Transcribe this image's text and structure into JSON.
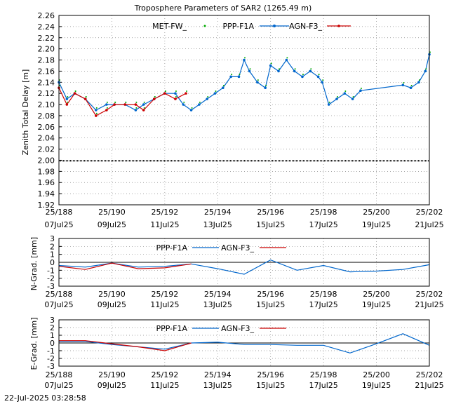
{
  "footer": {
    "timestamp": "22-Jul-2025 03:28:58"
  },
  "x_ticks": [
    {
      "top": "25/188",
      "bottom": "07Jul25",
      "day": 188
    },
    {
      "top": "25/190",
      "bottom": "09Jul25",
      "day": 190
    },
    {
      "top": "25/192",
      "bottom": "11Jul25",
      "day": 192
    },
    {
      "top": "25/194",
      "bottom": "13Jul25",
      "day": 194
    },
    {
      "top": "25/196",
      "bottom": "15Jul25",
      "day": 196
    },
    {
      "top": "25/198",
      "bottom": "17Jul25",
      "day": 198
    },
    {
      "top": "25/200",
      "bottom": "19Jul25",
      "day": 200
    },
    {
      "top": "25/202",
      "bottom": "21Jul25",
      "day": 202
    }
  ],
  "colors": {
    "met": "#00aa00",
    "ppp": "#0066cc",
    "agn": "#cc0000",
    "fw": "#000000"
  },
  "chart_data": [
    {
      "type": "scatter",
      "title": "Troposphere Parameters of SAR2 (1265.49 m)",
      "ylabel": "Zenith Total Delay [m]",
      "xlim": [
        188,
        202
      ],
      "ylim": [
        1.92,
        2.26
      ],
      "yticks": [
        "1.92",
        "1.94",
        "1.96",
        "1.98",
        "2.00",
        "2.02",
        "2.04",
        "2.06",
        "2.08",
        "2.10",
        "2.12",
        "2.14",
        "2.16",
        "2.18",
        "2.20",
        "2.22",
        "2.24",
        "2.26"
      ],
      "legend": [
        "MET-FW_",
        "PPP-F1A",
        "AGN-F3_"
      ],
      "series": [
        {
          "name": "PPP-F1A",
          "x": [
            188.0,
            188.3,
            188.6,
            189.0,
            189.4,
            189.8,
            190.1,
            190.5,
            190.9,
            191.2,
            191.6,
            192.0,
            192.4,
            192.7,
            193.0,
            193.3,
            193.6,
            193.9,
            194.2,
            194.5,
            194.8,
            195.0,
            195.2,
            195.5,
            195.8,
            196.0,
            196.3,
            196.6,
            196.9,
            197.2,
            197.5,
            197.8,
            197.95,
            198.2,
            198.5,
            198.8,
            199.1,
            199.4,
            201.0,
            201.3,
            201.6,
            201.85,
            202.0
          ],
          "y": [
            2.14,
            2.11,
            2.12,
            2.11,
            2.09,
            2.1,
            2.1,
            2.1,
            2.09,
            2.1,
            2.11,
            2.12,
            2.12,
            2.1,
            2.09,
            2.1,
            2.11,
            2.12,
            2.13,
            2.15,
            2.15,
            2.18,
            2.16,
            2.14,
            2.13,
            2.17,
            2.16,
            2.18,
            2.16,
            2.15,
            2.16,
            2.15,
            2.14,
            2.1,
            2.11,
            2.12,
            2.11,
            2.125,
            2.135,
            2.13,
            2.14,
            2.16,
            2.19
          ]
        },
        {
          "name": "AGN-F3_",
          "x": [
            188.0,
            188.3,
            188.6,
            189.0,
            189.4,
            189.8,
            190.1,
            190.5,
            190.9,
            191.2,
            191.6,
            192.0,
            192.4,
            192.8
          ],
          "y": [
            2.13,
            2.1,
            2.12,
            2.11,
            2.08,
            2.09,
            2.1,
            2.1,
            2.1,
            2.09,
            2.11,
            2.12,
            2.11,
            2.12
          ]
        },
        {
          "name": "MET-FW_",
          "x": [
            188,
            202
          ],
          "y": [
            1.999,
            1.999
          ]
        }
      ]
    },
    {
      "type": "line",
      "ylabel": "N-Grad. [mm]",
      "xlim": [
        188,
        202
      ],
      "ylim": [
        -3,
        3
      ],
      "yticks": [
        "-3",
        "-2",
        "-1",
        "0",
        "1",
        "2",
        "3"
      ],
      "legend": [
        "PPP-F1A",
        "AGN-F3_"
      ],
      "series": [
        {
          "name": "PPP-F1A",
          "x": [
            188,
            189,
            190,
            191,
            192,
            193,
            194,
            195,
            196,
            197,
            198,
            199,
            200,
            201,
            202
          ],
          "y": [
            -0.4,
            -0.6,
            -0.1,
            -0.6,
            -0.5,
            -0.2,
            -0.8,
            -1.5,
            0.3,
            -1.0,
            -0.4,
            -1.2,
            -1.1,
            -0.9,
            -0.3
          ]
        },
        {
          "name": "AGN-F3_",
          "x": [
            188,
            189,
            190,
            191,
            192,
            193
          ],
          "y": [
            -0.5,
            -0.9,
            -0.1,
            -0.8,
            -0.7,
            -0.2
          ]
        }
      ]
    },
    {
      "type": "line",
      "ylabel": "E-Grad. [mm]",
      "xlim": [
        188,
        202
      ],
      "ylim": [
        -3,
        3
      ],
      "yticks": [
        "-3",
        "-2",
        "-1",
        "0",
        "1",
        "2",
        "3"
      ],
      "legend": [
        "PPP-F1A",
        "AGN-F3_"
      ],
      "series": [
        {
          "name": "PPP-F1A",
          "x": [
            188,
            189,
            190,
            191,
            192,
            193,
            194,
            195,
            196,
            197,
            198,
            199,
            200,
            201,
            202
          ],
          "y": [
            0.2,
            0.2,
            -0.2,
            -0.5,
            -0.8,
            0.0,
            0.1,
            -0.2,
            -0.2,
            -0.3,
            -0.3,
            -1.3,
            -0.1,
            1.2,
            -0.3
          ]
        },
        {
          "name": "AGN-F3_",
          "x": [
            188,
            189,
            190,
            191,
            192,
            193
          ],
          "y": [
            0.3,
            0.3,
            -0.1,
            -0.5,
            -1.0,
            0.0
          ]
        }
      ]
    }
  ]
}
